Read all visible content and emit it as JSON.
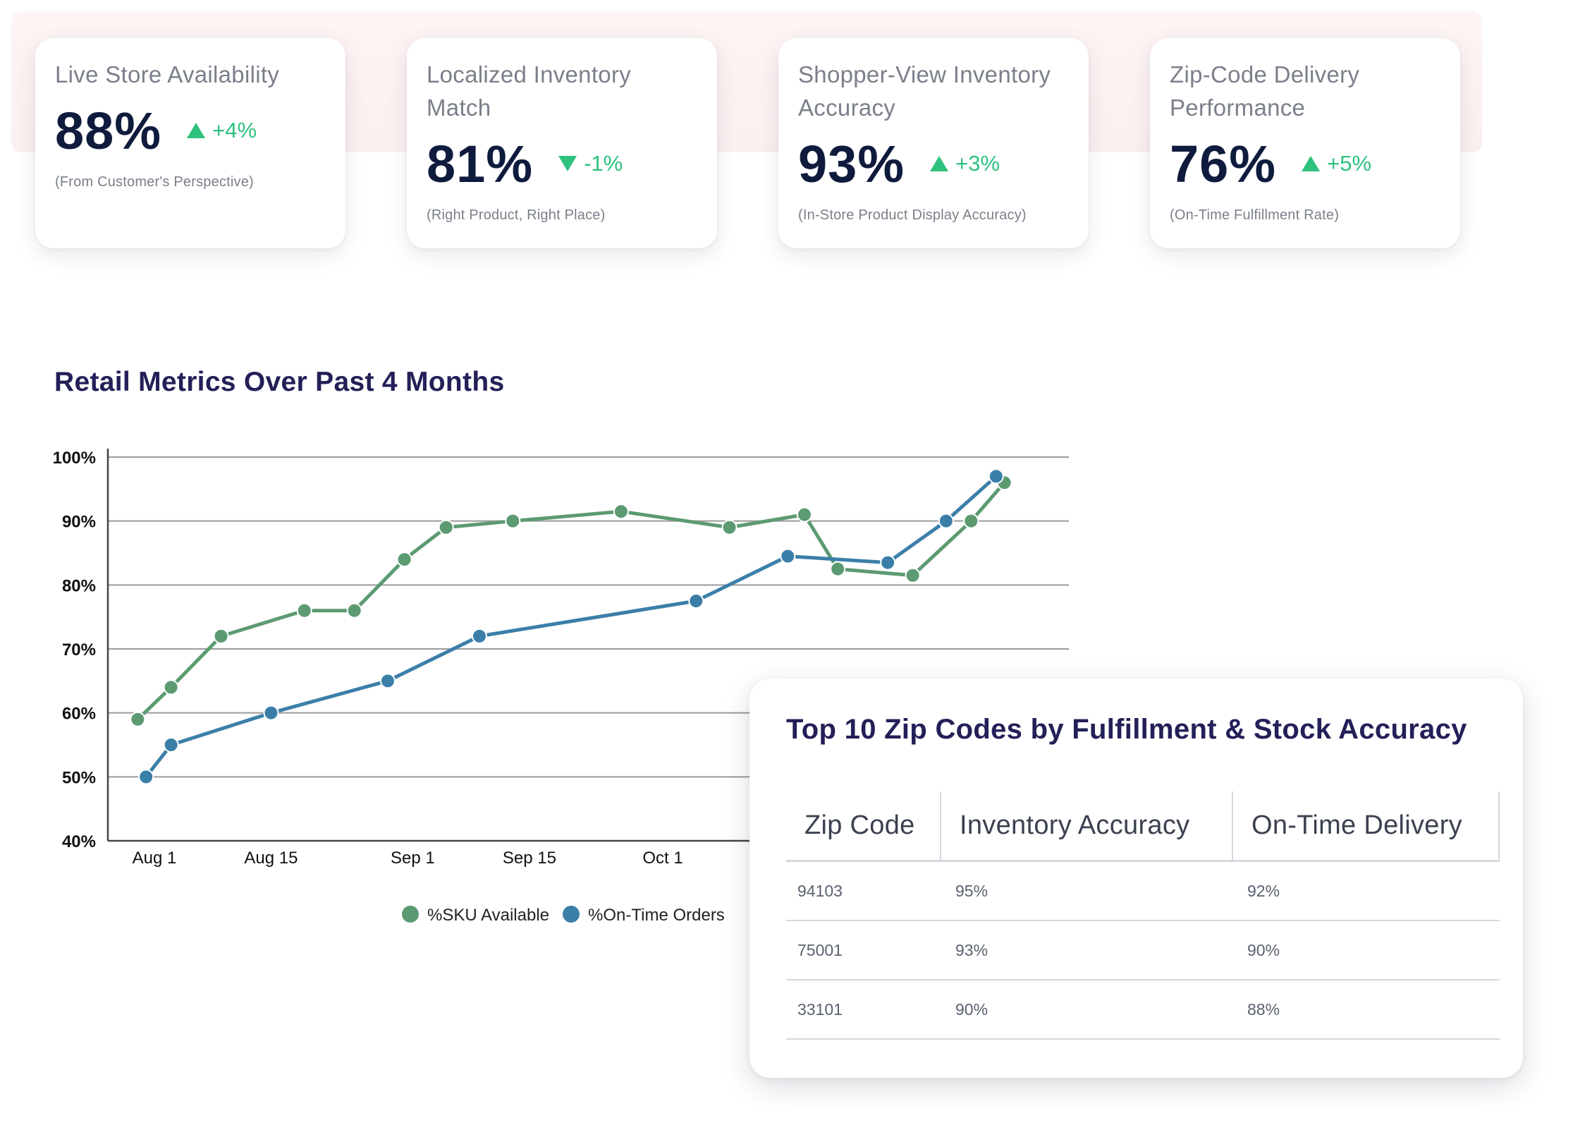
{
  "kpis": [
    {
      "title": "Live Store Availability",
      "value": "88%",
      "direction": "up",
      "delta": "+4%",
      "subtitle": "(From Customer's Perspective)"
    },
    {
      "title": "Localized Inventory Match",
      "value": "81%",
      "direction": "down",
      "delta": "-1%",
      "subtitle": "(Right Product, Right Place)"
    },
    {
      "title": "Shopper-View Inventory Accuracy",
      "value": "93%",
      "direction": "up",
      "delta": "+3%",
      "subtitle": "(In-Store Product Display Accuracy)"
    },
    {
      "title": "Zip-Code Delivery Performance",
      "value": "76%",
      "direction": "up",
      "delta": "+5%",
      "subtitle": "(On-Time Fulfillment Rate)"
    }
  ],
  "colors": {
    "accent_green": "#2ec27e",
    "sku_series": "#5c9a72",
    "orders_series": "#3b7fa9",
    "title_navy": "#232058",
    "value_navy": "#0f1b3d"
  },
  "chart_title": "Retail Metrics Over Past 4 Months",
  "chart_data": {
    "type": "line",
    "title": "Retail Metrics Over Past 4 Months",
    "xlabel": "",
    "ylabel": "",
    "x_ticks": [
      "Aug 1",
      "Aug 15",
      "Sep 1",
      "Sep 15",
      "Oct 1"
    ],
    "y_ticks": [
      "100%",
      "90%",
      "80%",
      "70%",
      "60%",
      "50%",
      "40%"
    ],
    "ylim": [
      40,
      100
    ],
    "grid": true,
    "legend_position": "bottom",
    "series": [
      {
        "name": "%SKU Available",
        "x": [
          "Jul 30",
          "Aug 3",
          "Aug 9",
          "Aug 19",
          "Aug 25",
          "Aug 31",
          "Sep 5",
          "Sep 13",
          "Sep 26",
          "Oct 9",
          "Oct 18",
          "Oct 22",
          "Oct 31",
          "Nov 7",
          "Nov 11"
        ],
        "values": [
          59,
          64,
          72,
          76,
          76,
          84,
          89,
          90,
          91.5,
          89,
          91,
          82.5,
          81.5,
          90,
          96
        ]
      },
      {
        "name": "%On-Time Orders",
        "x": [
          "Jul 31",
          "Aug 3",
          "Aug 15",
          "Aug 29",
          "Sep 9",
          "Oct 5",
          "Oct 16",
          "Oct 28",
          "Nov 4",
          "Nov 10"
        ],
        "values": [
          50,
          55,
          60,
          65,
          72,
          77.5,
          84.5,
          83.5,
          90,
          97
        ]
      }
    ]
  },
  "table": {
    "title": "Top 10 Zip Codes by Fulfillment & Stock Accuracy",
    "headers": [
      "Zip Code",
      "Inventory Accuracy",
      "On-Time Delivery"
    ],
    "rows": [
      [
        "94103",
        "95%",
        "92%"
      ],
      [
        "75001",
        "93%",
        "90%"
      ],
      [
        "33101",
        "90%",
        "88%"
      ]
    ]
  }
}
